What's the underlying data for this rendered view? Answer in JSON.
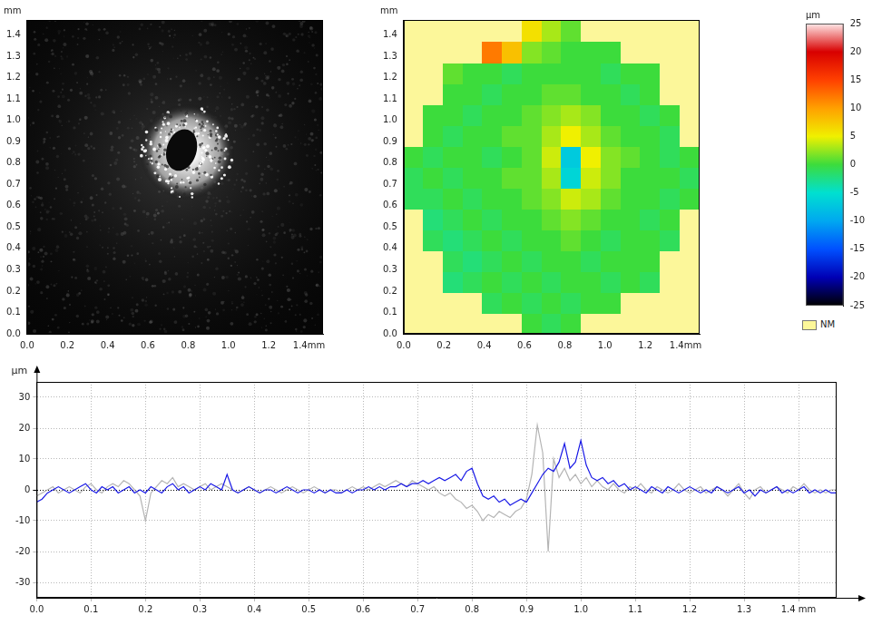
{
  "chart_data": [
    {
      "type": "image",
      "y_label": "mm",
      "xlim": [
        0,
        1.47
      ],
      "ylim": [
        0,
        1.47
      ],
      "xticks": [
        {
          "value": 0,
          "label": "0.0"
        },
        0.2,
        0.4,
        0.6,
        0.8,
        {
          "value": 1,
          "label": "1.0"
        },
        1.2,
        {
          "value": 1.4,
          "label": "1.4mm"
        }
      ],
      "yticks": [
        {
          "value": 0,
          "label": "0.0"
        },
        0.1,
        0.2,
        0.3,
        0.4,
        0.5,
        0.6,
        0.7,
        0.8,
        0.9,
        {
          "value": 1,
          "label": "1.0"
        },
        1.1,
        1.2,
        1.3,
        1.4
      ]
    },
    {
      "type": "heatmap",
      "y_label": "mm",
      "xlim": [
        0,
        1.47
      ],
      "ylim": [
        0,
        1.47
      ],
      "xticks": [
        {
          "value": 0,
          "label": "0.0"
        },
        0.2,
        0.4,
        0.6,
        0.8,
        {
          "value": 1,
          "label": "1.0"
        },
        1.2,
        {
          "value": 1.4,
          "label": "1.4mm"
        }
      ],
      "yticks": [
        {
          "value": 0,
          "label": "0.0"
        },
        0.1,
        0.2,
        0.3,
        0.4,
        0.5,
        0.6,
        0.7,
        0.8,
        0.9,
        {
          "value": 1,
          "label": "1.0"
        },
        1.1,
        1.2,
        1.3,
        1.4
      ],
      "x": [
        0.049,
        0.147,
        0.245,
        0.343,
        0.441,
        0.539,
        0.637,
        0.735,
        0.833,
        0.931,
        1.029,
        1.127,
        1.225,
        1.323,
        1.421
      ],
      "y": [
        0.049,
        0.147,
        0.245,
        0.343,
        0.441,
        0.539,
        0.637,
        0.735,
        0.833,
        0.931,
        1.029,
        1.127,
        1.225,
        1.323,
        1.421
      ],
      "z": [
        [
          null,
          null,
          null,
          null,
          null,
          null,
          0,
          -1,
          0,
          null,
          null,
          null,
          null,
          null,
          null
        ],
        [
          null,
          null,
          null,
          null,
          -1,
          0,
          -1,
          0,
          -1,
          0,
          0,
          null,
          null,
          null,
          null
        ],
        [
          null,
          null,
          -2,
          -1,
          0,
          -1,
          0,
          -1,
          0,
          0,
          -1,
          0,
          -1,
          null,
          null
        ],
        [
          null,
          null,
          -1,
          -2,
          -1,
          0,
          -1,
          0,
          0,
          -1,
          0,
          0,
          0,
          null,
          null
        ],
        [
          null,
          -1,
          -2,
          -1,
          0,
          -1,
          0,
          0,
          1,
          0,
          -1,
          0,
          0,
          -1,
          null
        ],
        [
          null,
          -2,
          -1,
          0,
          -1,
          0,
          0,
          1,
          2,
          1,
          0,
          0,
          -1,
          0,
          null
        ],
        [
          -1,
          -1,
          0,
          -1,
          0,
          0,
          1,
          2,
          4,
          3,
          1,
          0,
          0,
          -1,
          0
        ],
        [
          -1,
          0,
          -1,
          0,
          0,
          1,
          1,
          3,
          -6,
          4,
          2,
          0,
          0,
          0,
          -1
        ],
        [
          0,
          -1,
          0,
          0,
          -1,
          0,
          1,
          4,
          -7,
          5,
          2,
          1,
          0,
          -1,
          0
        ],
        [
          null,
          0,
          -1,
          0,
          0,
          1,
          1,
          3,
          5,
          3,
          1,
          0,
          0,
          -1,
          null
        ],
        [
          null,
          0,
          0,
          -1,
          0,
          0,
          1,
          2,
          3,
          2,
          0,
          0,
          -1,
          0,
          null
        ],
        [
          null,
          null,
          0,
          0,
          -1,
          0,
          0,
          1,
          1,
          0,
          0,
          -1,
          0,
          null,
          null
        ],
        [
          null,
          null,
          1,
          0,
          0,
          -1,
          0,
          0,
          0,
          0,
          -1,
          0,
          0,
          null,
          null
        ],
        [
          null,
          null,
          null,
          null,
          12,
          8,
          2,
          1,
          0,
          0,
          0,
          null,
          null,
          null,
          null
        ],
        [
          null,
          null,
          null,
          null,
          null,
          null,
          6,
          3,
          1,
          null,
          null,
          null,
          null,
          null,
          null
        ]
      ],
      "colorbar": {
        "label": "µm",
        "missing_label": "NM",
        "range": [
          -25,
          25
        ],
        "ticks": [
          -25,
          -20,
          -15,
          -10,
          -5,
          0,
          5,
          10,
          15,
          20,
          25
        ]
      }
    },
    {
      "type": "line",
      "y_label": "µm",
      "grid": true,
      "xlim": [
        0,
        1.47
      ],
      "ylim": [
        -35,
        35
      ],
      "xticks": [
        {
          "value": 0,
          "label": "0.0"
        },
        0.1,
        0.2,
        0.3,
        0.4,
        0.5,
        0.6,
        0.7,
        0.8,
        0.9,
        {
          "value": 1,
          "label": "1.0"
        },
        1.1,
        1.2,
        1.3,
        {
          "value": 1.4,
          "label": "1.4 mm"
        }
      ],
      "yticks": [
        -30,
        -20,
        -10,
        0,
        10,
        20,
        30
      ],
      "x": [
        0,
        0.01,
        0.02,
        0.03,
        0.04,
        0.05,
        0.06,
        0.07,
        0.08,
        0.09,
        0.1,
        0.11,
        0.12,
        0.13,
        0.14,
        0.15,
        0.16,
        0.17,
        0.18,
        0.19,
        0.2,
        0.21,
        0.22,
        0.23,
        0.24,
        0.25,
        0.26,
        0.27,
        0.28,
        0.29,
        0.3,
        0.31,
        0.32,
        0.33,
        0.34,
        0.35,
        0.36,
        0.37,
        0.38,
        0.39,
        0.4,
        0.41,
        0.42,
        0.43,
        0.44,
        0.45,
        0.46,
        0.47,
        0.48,
        0.49,
        0.5,
        0.51,
        0.52,
        0.53,
        0.54,
        0.55,
        0.56,
        0.57,
        0.58,
        0.59,
        0.6,
        0.61,
        0.62,
        0.63,
        0.64,
        0.65,
        0.66,
        0.67,
        0.68,
        0.69,
        0.7,
        0.71,
        0.72,
        0.73,
        0.74,
        0.75,
        0.76,
        0.77,
        0.78,
        0.79,
        0.8,
        0.81,
        0.82,
        0.83,
        0.84,
        0.85,
        0.86,
        0.87,
        0.88,
        0.89,
        0.9,
        0.91,
        0.92,
        0.93,
        0.94,
        0.95,
        0.96,
        0.97,
        0.98,
        0.99,
        1.0,
        1.01,
        1.02,
        1.03,
        1.04,
        1.05,
        1.06,
        1.07,
        1.08,
        1.09,
        1.1,
        1.11,
        1.12,
        1.13,
        1.14,
        1.15,
        1.16,
        1.17,
        1.18,
        1.19,
        1.2,
        1.21,
        1.22,
        1.23,
        1.24,
        1.25,
        1.26,
        1.27,
        1.28,
        1.29,
        1.3,
        1.31,
        1.32,
        1.33,
        1.34,
        1.35,
        1.36,
        1.37,
        1.38,
        1.39,
        1.4,
        1.41,
        1.42,
        1.43,
        1.44,
        1.45,
        1.46,
        1.47
      ],
      "series": [
        {
          "color": "#1a1ae6",
          "values": [
            -4,
            -3,
            -1,
            0,
            1,
            0,
            -1,
            0,
            1,
            2,
            0,
            -1,
            1,
            0,
            1,
            -1,
            0,
            1,
            -1,
            0,
            -1,
            1,
            0,
            -1,
            1,
            2,
            0,
            1,
            -1,
            0,
            1,
            0,
            2,
            1,
            0,
            5,
            0,
            -1,
            0,
            1,
            0,
            -1,
            0,
            0,
            -1,
            0,
            1,
            0,
            -1,
            0,
            0,
            -1,
            0,
            -1,
            0,
            -1,
            -1,
            0,
            -1,
            0,
            0,
            1,
            0,
            1,
            0,
            1,
            1,
            2,
            1,
            2,
            2,
            3,
            2,
            3,
            4,
            3,
            4,
            5,
            3,
            6,
            7,
            2,
            -2,
            -3,
            -2,
            -4,
            -3,
            -5,
            -4,
            -3,
            -4,
            -1,
            2,
            5,
            7,
            6,
            9,
            15,
            7,
            9,
            16,
            8,
            4,
            3,
            4,
            2,
            3,
            1,
            2,
            0,
            1,
            0,
            -1,
            1,
            0,
            -1,
            1,
            0,
            -1,
            0,
            1,
            0,
            -1,
            0,
            -1,
            1,
            0,
            -1,
            0,
            1,
            -1,
            0,
            -2,
            0,
            -1,
            0,
            1,
            -1,
            0,
            -1,
            0,
            1,
            -1,
            0,
            -1,
            0,
            -1,
            -1
          ]
        },
        {
          "color": "#b4b4b4",
          "values": [
            -2,
            -1,
            0,
            1,
            -1,
            0,
            1,
            0,
            -1,
            1,
            2,
            0,
            -1,
            1,
            2,
            1,
            3,
            2,
            0,
            -2,
            -10,
            -1,
            1,
            3,
            2,
            4,
            1,
            2,
            1,
            0,
            1,
            2,
            0,
            1,
            2,
            1,
            0,
            -1,
            0,
            1,
            0,
            -1,
            0,
            1,
            0,
            -1,
            0,
            1,
            0,
            -1,
            0,
            1,
            0,
            -1,
            0,
            0,
            -1,
            0,
            1,
            0,
            1,
            0,
            1,
            2,
            1,
            2,
            3,
            2,
            1,
            3,
            2,
            1,
            0,
            1,
            -1,
            -2,
            -1,
            -3,
            -4,
            -6,
            -5,
            -7,
            -10,
            -8,
            -9,
            -7,
            -8,
            -9,
            -7,
            -6,
            -3,
            5,
            21,
            12,
            -20,
            10,
            4,
            7,
            3,
            5,
            2,
            4,
            1,
            3,
            1,
            0,
            2,
            0,
            -1,
            1,
            0,
            2,
            0,
            -1,
            1,
            0,
            -1,
            0,
            2,
            0,
            -1,
            0,
            1,
            -1,
            0,
            1,
            0,
            -2,
            0,
            2,
            -1,
            -3,
            0,
            1,
            -1,
            0,
            1,
            0,
            -1,
            1,
            0,
            2,
            0,
            -1,
            0,
            -1,
            0,
            0
          ]
        }
      ]
    }
  ]
}
